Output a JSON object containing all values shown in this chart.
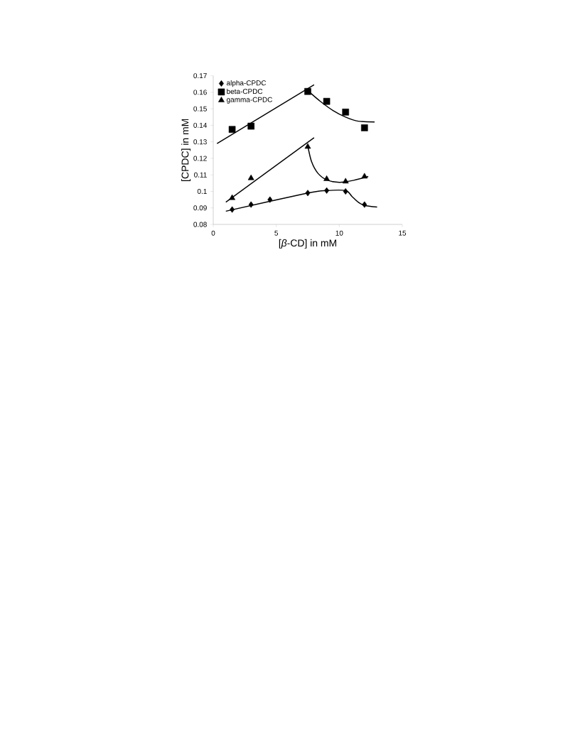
{
  "chart_data": {
    "type": "scatter",
    "xlabel": "[*β*-CD] in mM",
    "ylabel": "[CPDC] in mM",
    "xlim": [
      0,
      15
    ],
    "xticks": [
      0,
      5,
      10,
      15
    ],
    "ylim": [
      0.08,
      0.17
    ],
    "yticks": [
      0.08,
      0.09,
      0.1,
      0.11,
      0.12,
      0.13,
      0.14,
      0.15,
      0.16,
      0.17
    ],
    "legend": "top left",
    "grid": false,
    "series": [
      {
        "name": "alpha-CPDC",
        "color": "#000000",
        "marker": "diamond",
        "x": [
          1.5,
          3,
          4.5,
          7.5,
          9,
          10.5,
          12
        ],
        "values": [
          0.089,
          0.092,
          0.095,
          0.099,
          0.1005,
          0.1,
          0.092
        ]
      },
      {
        "name": "beta-CPDC",
        "color": "#000000",
        "marker": "square",
        "x": [
          1.5,
          3,
          7.5,
          9,
          10.5,
          12
        ],
        "values": [
          0.1375,
          0.1395,
          0.1605,
          0.1545,
          0.148,
          0.1385
        ]
      },
      {
        "name": "gamma-CPDC",
        "color": "#000000",
        "marker": "triangle",
        "x": [
          1.5,
          3,
          7.5,
          9,
          10.5,
          12
        ],
        "values": [
          0.096,
          0.108,
          0.127,
          0.1075,
          0.106,
          0.109
        ]
      },
      {
        "type": "line",
        "color": "#000000",
        "x": [
          0.3,
          8
        ],
        "values": [
          0.129,
          0.1645
        ]
      },
      {
        "type": "line",
        "color": "#000000",
        "x": [
          7.5,
          8.5,
          9.5,
          10.5,
          11.5,
          12.8
        ],
        "values": [
          0.161,
          0.1545,
          0.149,
          0.145,
          0.1425,
          0.142
        ]
      },
      {
        "type": "line",
        "color": "#000000",
        "x": [
          1,
          8
        ],
        "values": [
          0.0935,
          0.1325
        ]
      },
      {
        "type": "line",
        "color": "#000000",
        "x": [
          7.5,
          7.8,
          8.3,
          9,
          10,
          11,
          12.3
        ],
        "values": [
          0.1275,
          0.118,
          0.111,
          0.107,
          0.1055,
          0.1065,
          0.109
        ]
      },
      {
        "type": "line",
        "color": "#000000",
        "x": [
          1,
          7.5,
          9,
          10.5,
          11,
          11.5,
          12,
          13
        ],
        "values": [
          0.088,
          0.099,
          0.1005,
          0.1005,
          0.097,
          0.0935,
          0.0915,
          0.0905
        ]
      }
    ]
  }
}
